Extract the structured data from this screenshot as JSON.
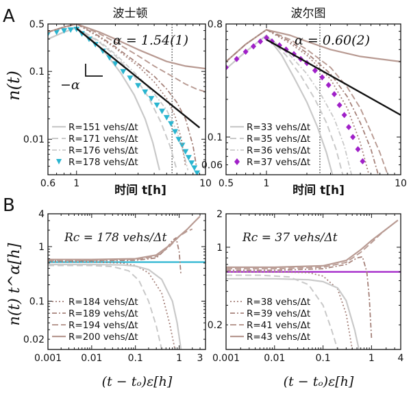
{
  "figure": {
    "panel_a_letter": "A",
    "panel_b_letter": "B",
    "colors": {
      "frame": "#111111",
      "fit": "#111111",
      "light": "#c9c9c9",
      "brown": "#b89a92",
      "brown_dark": "#a58179",
      "cyan": "#2ab5d0",
      "magenta": "#a020c8",
      "vline": "#333333"
    }
  },
  "chart_data": [
    {
      "id": "A_left",
      "type": "line",
      "title": "波士顿",
      "xlabel": "时间 t[h]",
      "ylabel": "n(t)",
      "xscale": "log",
      "yscale": "log",
      "xlim": [
        0.6,
        10
      ],
      "ylim": [
        0.003,
        0.5
      ],
      "xticks": [
        0.6,
        1,
        10
      ],
      "xtick_labels": [
        "0.6",
        "1",
        "10"
      ],
      "yticks": [
        0.5,
        0.1,
        0.01
      ],
      "ytick_labels": [
        "0.5",
        "0.1",
        "0.01"
      ],
      "annotation": "α = 1.54(1)",
      "slope_label": "−α",
      "vline_x": 5.5,
      "fit": {
        "x": [
          1.0,
          9.0
        ],
        "y": [
          0.43,
          0.0148
        ]
      },
      "legend_position": "bottom-left",
      "series": [
        {
          "name": "R=151 vehs/Δt",
          "style": "solid-light",
          "x": [
            0.6,
            0.8,
            1.0,
            1.3,
            1.7,
            2.2,
            2.8,
            3.4,
            3.9,
            4.4
          ],
          "y": [
            0.3,
            0.38,
            0.44,
            0.3,
            0.18,
            0.095,
            0.045,
            0.02,
            0.009,
            0.0035
          ]
        },
        {
          "name": "R=171 vehs/Δt",
          "style": "dash-light",
          "x": [
            0.6,
            0.8,
            1.0,
            1.5,
            2.0,
            2.8,
            3.6,
            4.5,
            5.3,
            6.0
          ],
          "y": [
            0.3,
            0.38,
            0.44,
            0.27,
            0.17,
            0.085,
            0.042,
            0.018,
            0.008,
            0.0035
          ]
        },
        {
          "name": "R=176 vehs/Δt",
          "style": "dot-dash-light",
          "x": [
            0.6,
            0.8,
            1.0,
            1.5,
            2.0,
            3.0,
            4.0,
            5.0,
            6.0,
            6.8,
            7.3
          ],
          "y": [
            0.3,
            0.38,
            0.44,
            0.28,
            0.18,
            0.085,
            0.047,
            0.027,
            0.013,
            0.006,
            0.0035
          ]
        },
        {
          "name": "R=178 vehs/Δt",
          "style": "triangles",
          "x": [
            0.6,
            0.7,
            0.8,
            0.9,
            1.0,
            1.1,
            1.25,
            1.4,
            1.6,
            1.8,
            2.0,
            2.3,
            2.6,
            3.0,
            3.4,
            3.8,
            4.2,
            4.6,
            5.0,
            5.4,
            5.8,
            6.2,
            6.6,
            7.0,
            7.4,
            7.8,
            8.2,
            8.6
          ],
          "y": [
            0.36,
            0.38,
            0.4,
            0.41,
            0.42,
            0.36,
            0.3,
            0.25,
            0.2,
            0.16,
            0.13,
            0.1,
            0.08,
            0.062,
            0.05,
            0.04,
            0.032,
            0.026,
            0.021,
            0.017,
            0.013,
            0.01,
            0.0082,
            0.0066,
            0.0054,
            0.0045,
            0.0038,
            0.0032
          ]
        },
        {
          "name": "",
          "style": "brown-solid",
          "x": [
            0.6,
            0.8,
            1.0,
            1.5,
            2.0,
            3.0,
            5.0,
            7.0,
            10.0
          ],
          "y": [
            0.38,
            0.45,
            0.5,
            0.38,
            0.3,
            0.21,
            0.14,
            0.12,
            0.11
          ]
        },
        {
          "name": "",
          "style": "brown-dash",
          "x": [
            0.6,
            0.8,
            1.0,
            1.5,
            2.0,
            3.0,
            4.0,
            5.5,
            7.0,
            8.5,
            10.0
          ],
          "y": [
            0.38,
            0.45,
            0.5,
            0.36,
            0.27,
            0.17,
            0.12,
            0.085,
            0.065,
            0.055,
            0.05
          ]
        },
        {
          "name": "",
          "style": "brown-dashdot",
          "x": [
            0.6,
            0.8,
            1.0,
            1.5,
            2.0,
            3.0,
            4.0,
            5.0,
            6.0,
            7.0,
            8.0,
            8.5
          ],
          "y": [
            0.38,
            0.45,
            0.5,
            0.33,
            0.23,
            0.13,
            0.085,
            0.055,
            0.035,
            0.02,
            0.008,
            0.004
          ]
        },
        {
          "name": "",
          "style": "brown-dot",
          "x": [
            0.6,
            0.8,
            1.0,
            1.5,
            2.0,
            3.0,
            4.0,
            5.0,
            5.8,
            6.5,
            7.0
          ],
          "y": [
            0.38,
            0.45,
            0.5,
            0.32,
            0.22,
            0.12,
            0.07,
            0.04,
            0.022,
            0.01,
            0.004
          ]
        }
      ]
    },
    {
      "id": "A_right",
      "type": "line",
      "title": "波尔图",
      "xlabel": "时间 t[h]",
      "ylabel": "",
      "xscale": "log",
      "yscale": "log",
      "xlim": [
        0.5,
        10
      ],
      "ylim": [
        0.05,
        0.8
      ],
      "xticks": [
        0.5,
        1,
        10
      ],
      "xtick_labels": [
        "0.5",
        "1",
        "10"
      ],
      "yticks": [
        0.8,
        0.1,
        0.06
      ],
      "ytick_labels": [
        "0.8",
        "0.1",
        "0.06"
      ],
      "annotation": "α = 0.60(2)",
      "vline_x": 2.5,
      "fit": {
        "x": [
          1.0,
          10.0
        ],
        "y": [
          0.6,
          0.15
        ]
      },
      "legend_position": "bottom-left",
      "series": [
        {
          "name": "R=33 vehs/Δt",
          "style": "solid-light",
          "x": [
            0.5,
            0.7,
            1.0,
            1.3,
            1.6,
            2.0,
            2.4,
            2.8,
            3.1
          ],
          "y": [
            0.35,
            0.48,
            0.65,
            0.45,
            0.3,
            0.19,
            0.12,
            0.075,
            0.05
          ]
        },
        {
          "name": "R=35 vehs/Δt",
          "style": "dash-light",
          "x": [
            0.5,
            0.7,
            1.0,
            1.4,
            1.8,
            2.3,
            2.8,
            3.3,
            3.7
          ],
          "y": [
            0.35,
            0.48,
            0.65,
            0.45,
            0.31,
            0.2,
            0.13,
            0.08,
            0.05
          ]
        },
        {
          "name": "R=36 vehs/Δt",
          "style": "dot-dash-light",
          "x": [
            0.5,
            0.7,
            1.0,
            1.5,
            2.0,
            2.6,
            3.2,
            3.8,
            4.3
          ],
          "y": [
            0.35,
            0.48,
            0.65,
            0.45,
            0.32,
            0.21,
            0.14,
            0.085,
            0.05
          ]
        },
        {
          "name": "R=37 vehs/Δt",
          "style": "diamonds",
          "x": [
            0.5,
            0.6,
            0.7,
            0.8,
            0.9,
            1.0,
            1.1,
            1.25,
            1.4,
            1.6,
            1.8,
            2.0,
            2.3,
            2.6,
            2.9,
            3.2,
            3.5,
            3.8,
            4.1,
            4.4,
            4.8,
            5.2
          ],
          "y": [
            0.36,
            0.42,
            0.48,
            0.53,
            0.58,
            0.62,
            0.58,
            0.54,
            0.5,
            0.46,
            0.42,
            0.39,
            0.34,
            0.3,
            0.26,
            0.22,
            0.18,
            0.15,
            0.12,
            0.1,
            0.08,
            0.064
          ]
        },
        {
          "name": "",
          "style": "brown-solid",
          "x": [
            0.5,
            0.7,
            1.0,
            1.5,
            2.0,
            3.0,
            5.0,
            7.0,
            10.0
          ],
          "y": [
            0.4,
            0.55,
            0.72,
            0.65,
            0.58,
            0.5,
            0.44,
            0.42,
            0.4
          ]
        },
        {
          "name": "",
          "style": "brown-dash",
          "x": [
            0.5,
            0.7,
            1.0,
            1.5,
            2.0,
            3.0,
            4.0,
            5.0,
            6.0,
            7.0,
            8.0
          ],
          "y": [
            0.4,
            0.55,
            0.72,
            0.6,
            0.5,
            0.36,
            0.25,
            0.17,
            0.11,
            0.075,
            0.05
          ]
        },
        {
          "name": "",
          "style": "brown-dashdot",
          "x": [
            0.5,
            0.7,
            1.0,
            1.5,
            2.0,
            3.0,
            4.0,
            5.0,
            6.0,
            6.8
          ],
          "y": [
            0.4,
            0.55,
            0.72,
            0.58,
            0.47,
            0.32,
            0.21,
            0.13,
            0.08,
            0.05
          ]
        },
        {
          "name": "",
          "style": "brown-dot",
          "x": [
            0.5,
            0.7,
            1.0,
            1.5,
            2.0,
            3.0,
            4.0,
            5.0,
            5.8
          ],
          "y": [
            0.4,
            0.55,
            0.72,
            0.56,
            0.45,
            0.29,
            0.17,
            0.09,
            0.05
          ]
        }
      ]
    },
    {
      "id": "B_left",
      "type": "line",
      "title": "",
      "xlabel": "(t − tₒ)ε[h]",
      "ylabel": "n(t) t^α[h]",
      "xscale": "log",
      "yscale": "log",
      "xlim": [
        0.001,
        4
      ],
      "ylim": [
        0.013,
        4
      ],
      "xticks": [
        0.001,
        0.01,
        0.1,
        1,
        3
      ],
      "xtick_labels": [
        "0.001",
        "0.01",
        "0.1",
        "1",
        "3"
      ],
      "yticks": [
        4,
        1,
        0.1,
        0.02
      ],
      "ytick_labels": [
        "4",
        "1",
        "0.1",
        "0.02"
      ],
      "annotation": "Rc = 178 vehs/Δt",
      "hline_y": 0.52,
      "hline_color": "cyan",
      "legend_position": "bottom-left",
      "series": [
        {
          "name": "R=184 vehs/Δt",
          "style": "brown-dot",
          "x": [
            0.001,
            0.01,
            0.05,
            0.1,
            0.2,
            0.4,
            0.6,
            0.8
          ],
          "y": [
            0.52,
            0.52,
            0.5,
            0.45,
            0.33,
            0.14,
            0.04,
            0.013
          ]
        },
        {
          "name": "R=189 vehs/Δt",
          "style": "brown-dashdot",
          "x": [
            0.001,
            0.01,
            0.1,
            0.3,
            0.5,
            0.7,
            0.85,
            1.0,
            1.1
          ],
          "y": [
            0.55,
            0.55,
            0.56,
            0.62,
            0.9,
            1.3,
            1.45,
            0.8,
            0.3
          ]
        },
        {
          "name": "R=194 vehs/Δt",
          "style": "brown-dash",
          "x": [
            0.001,
            0.01,
            0.1,
            0.3,
            0.6,
            1.0,
            1.5,
            2.0
          ],
          "y": [
            0.56,
            0.56,
            0.58,
            0.66,
            1.0,
            1.55,
            1.9,
            2.1
          ]
        },
        {
          "name": "R=200 vehs/Δt",
          "style": "brown-solid",
          "x": [
            0.001,
            0.01,
            0.1,
            0.3,
            0.6,
            1.0,
            1.5,
            2.0,
            3.0
          ],
          "y": [
            0.58,
            0.58,
            0.6,
            0.7,
            1.05,
            1.55,
            2.05,
            2.6,
            3.6
          ]
        },
        {
          "name": "",
          "style": "solid-light",
          "x": [
            0.001,
            0.01,
            0.05,
            0.1,
            0.2,
            0.4,
            0.7,
            0.9,
            1.1
          ],
          "y": [
            0.47,
            0.47,
            0.46,
            0.44,
            0.38,
            0.25,
            0.1,
            0.04,
            0.013
          ]
        },
        {
          "name": "",
          "style": "dash-light",
          "x": [
            0.001,
            0.01,
            0.03,
            0.07,
            0.12,
            0.2,
            0.3,
            0.4
          ],
          "y": [
            0.45,
            0.45,
            0.43,
            0.36,
            0.24,
            0.1,
            0.035,
            0.013
          ]
        }
      ]
    },
    {
      "id": "B_right",
      "type": "line",
      "title": "",
      "xlabel": "(t − tₒ)ε[h]",
      "ylabel": "",
      "xscale": "log",
      "yscale": "log",
      "xlim": [
        0.001,
        4
      ],
      "ylim": [
        0.12,
        2
      ],
      "xticks": [
        0.001,
        0.01,
        0.1,
        1,
        4
      ],
      "xtick_labels": [
        "0.001",
        "0.01",
        "0.1",
        "1",
        "4"
      ],
      "yticks": [
        2,
        1,
        0.2
      ],
      "ytick_labels": [
        "2",
        "1",
        "0.2"
      ],
      "annotation": "Rc = 37 vehs/Δt",
      "hline_y": 0.6,
      "hline_color": "magenta",
      "legend_position": "bottom-left",
      "series": [
        {
          "name": "R=38 vehs/Δt",
          "style": "brown-dot",
          "x": [
            0.001,
            0.01,
            0.05,
            0.1,
            0.2,
            0.3,
            0.4
          ],
          "y": [
            0.6,
            0.6,
            0.59,
            0.55,
            0.42,
            0.25,
            0.12
          ]
        },
        {
          "name": "R=39 vehs/Δt",
          "style": "brown-dashdot",
          "x": [
            0.001,
            0.01,
            0.1,
            0.3,
            0.5,
            0.65,
            0.8,
            0.9,
            1.0
          ],
          "y": [
            0.62,
            0.62,
            0.64,
            0.7,
            0.8,
            0.82,
            0.6,
            0.35,
            0.15
          ]
        },
        {
          "name": "R=41 vehs/Δt",
          "style": "brown-dash",
          "x": [
            0.001,
            0.01,
            0.1,
            0.3,
            0.6,
            1.0,
            1.5,
            2.0
          ],
          "y": [
            0.64,
            0.64,
            0.66,
            0.73,
            0.9,
            1.1,
            1.3,
            1.45
          ]
        },
        {
          "name": "R=43 vehs/Δt",
          "style": "brown-solid",
          "x": [
            0.001,
            0.01,
            0.1,
            0.3,
            0.6,
            1.0,
            2.0,
            3.5
          ],
          "y": [
            0.66,
            0.66,
            0.68,
            0.76,
            0.95,
            1.15,
            1.45,
            1.75
          ]
        },
        {
          "name": "",
          "style": "solid-light",
          "x": [
            0.001,
            0.01,
            0.05,
            0.1,
            0.2,
            0.3,
            0.45,
            0.55
          ],
          "y": [
            0.52,
            0.52,
            0.51,
            0.49,
            0.43,
            0.33,
            0.18,
            0.12
          ]
        },
        {
          "name": "",
          "style": "dash-light",
          "x": [
            0.001,
            0.005,
            0.02,
            0.05,
            0.1,
            0.15,
            0.2
          ],
          "y": [
            0.56,
            0.56,
            0.54,
            0.46,
            0.3,
            0.18,
            0.12
          ]
        }
      ]
    }
  ]
}
